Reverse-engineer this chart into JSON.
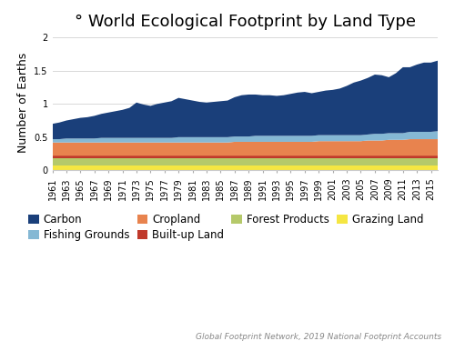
{
  "title": "° World Ecological Footprint by Land Type",
  "ylabel": "Number of Earths",
  "xlabel": "",
  "caption": "Global Footprint Network, 2019 National Footprint Accounts",
  "years": [
    1961,
    1962,
    1963,
    1964,
    1965,
    1966,
    1967,
    1968,
    1969,
    1970,
    1971,
    1972,
    1973,
    1974,
    1975,
    1976,
    1977,
    1978,
    1979,
    1980,
    1981,
    1982,
    1983,
    1984,
    1985,
    1986,
    1987,
    1988,
    1989,
    1990,
    1991,
    1992,
    1993,
    1994,
    1995,
    1996,
    1997,
    1998,
    1999,
    2000,
    2001,
    2002,
    2003,
    2004,
    2005,
    2006,
    2007,
    2008,
    2009,
    2010,
    2011,
    2012,
    2013,
    2014,
    2015,
    2016
  ],
  "grazing_land": [
    0.07,
    0.07,
    0.07,
    0.07,
    0.07,
    0.07,
    0.07,
    0.07,
    0.07,
    0.07,
    0.07,
    0.07,
    0.07,
    0.07,
    0.07,
    0.07,
    0.07,
    0.07,
    0.07,
    0.07,
    0.07,
    0.07,
    0.07,
    0.07,
    0.07,
    0.07,
    0.07,
    0.07,
    0.07,
    0.07,
    0.07,
    0.07,
    0.07,
    0.07,
    0.07,
    0.07,
    0.07,
    0.07,
    0.07,
    0.07,
    0.07,
    0.07,
    0.07,
    0.07,
    0.07,
    0.07,
    0.07,
    0.07,
    0.07,
    0.07,
    0.07,
    0.07,
    0.07,
    0.07,
    0.07,
    0.07
  ],
  "forest_products": [
    0.12,
    0.12,
    0.12,
    0.12,
    0.12,
    0.12,
    0.12,
    0.12,
    0.12,
    0.12,
    0.12,
    0.12,
    0.12,
    0.12,
    0.12,
    0.12,
    0.12,
    0.12,
    0.12,
    0.12,
    0.12,
    0.12,
    0.12,
    0.12,
    0.12,
    0.12,
    0.12,
    0.12,
    0.12,
    0.12,
    0.12,
    0.12,
    0.12,
    0.12,
    0.12,
    0.12,
    0.12,
    0.12,
    0.12,
    0.12,
    0.12,
    0.12,
    0.12,
    0.12,
    0.12,
    0.12,
    0.12,
    0.12,
    0.12,
    0.12,
    0.12,
    0.12,
    0.12,
    0.12,
    0.12,
    0.12
  ],
  "built_up_land": [
    0.03,
    0.03,
    0.03,
    0.03,
    0.03,
    0.03,
    0.03,
    0.03,
    0.03,
    0.03,
    0.03,
    0.03,
    0.03,
    0.03,
    0.03,
    0.03,
    0.03,
    0.03,
    0.03,
    0.03,
    0.03,
    0.03,
    0.03,
    0.03,
    0.03,
    0.03,
    0.03,
    0.03,
    0.03,
    0.03,
    0.03,
    0.03,
    0.03,
    0.03,
    0.03,
    0.03,
    0.03,
    0.03,
    0.03,
    0.03,
    0.03,
    0.03,
    0.03,
    0.03,
    0.03,
    0.03,
    0.03,
    0.03,
    0.03,
    0.03,
    0.03,
    0.03,
    0.03,
    0.03,
    0.03,
    0.03
  ],
  "cropland": [
    0.2,
    0.2,
    0.2,
    0.2,
    0.2,
    0.2,
    0.2,
    0.2,
    0.2,
    0.2,
    0.2,
    0.2,
    0.2,
    0.2,
    0.2,
    0.2,
    0.2,
    0.2,
    0.2,
    0.2,
    0.2,
    0.2,
    0.2,
    0.2,
    0.2,
    0.2,
    0.21,
    0.21,
    0.21,
    0.21,
    0.21,
    0.21,
    0.21,
    0.21,
    0.21,
    0.21,
    0.21,
    0.21,
    0.22,
    0.22,
    0.22,
    0.22,
    0.22,
    0.22,
    0.22,
    0.23,
    0.23,
    0.23,
    0.24,
    0.24,
    0.24,
    0.25,
    0.25,
    0.25,
    0.25,
    0.25
  ],
  "fishing_grounds": [
    0.05,
    0.05,
    0.06,
    0.06,
    0.06,
    0.06,
    0.06,
    0.07,
    0.07,
    0.07,
    0.07,
    0.07,
    0.07,
    0.07,
    0.07,
    0.07,
    0.07,
    0.07,
    0.08,
    0.08,
    0.08,
    0.08,
    0.08,
    0.08,
    0.08,
    0.08,
    0.08,
    0.08,
    0.08,
    0.09,
    0.09,
    0.09,
    0.09,
    0.09,
    0.09,
    0.09,
    0.09,
    0.09,
    0.09,
    0.09,
    0.09,
    0.09,
    0.09,
    0.09,
    0.09,
    0.09,
    0.1,
    0.1,
    0.1,
    0.1,
    0.1,
    0.11,
    0.11,
    0.11,
    0.11,
    0.12
  ],
  "carbon": [
    0.23,
    0.25,
    0.27,
    0.29,
    0.31,
    0.32,
    0.34,
    0.36,
    0.38,
    0.4,
    0.42,
    0.45,
    0.53,
    0.5,
    0.48,
    0.51,
    0.53,
    0.55,
    0.59,
    0.57,
    0.55,
    0.53,
    0.52,
    0.53,
    0.54,
    0.55,
    0.59,
    0.62,
    0.63,
    0.62,
    0.61,
    0.61,
    0.6,
    0.61,
    0.63,
    0.65,
    0.66,
    0.64,
    0.65,
    0.67,
    0.68,
    0.7,
    0.74,
    0.79,
    0.82,
    0.85,
    0.89,
    0.88,
    0.84,
    0.9,
    0.99,
    0.97,
    1.01,
    1.04,
    1.04,
    1.06
  ],
  "colors": {
    "grazing_land": "#f5e642",
    "forest_products": "#b5c96a",
    "built_up_land": "#c0392b",
    "cropland": "#e8834e",
    "fishing_grounds": "#85b8d4",
    "carbon": "#1a3f7a"
  },
  "ylim": [
    0,
    2.05
  ],
  "yticks": [
    0,
    0.5,
    1,
    1.5,
    2
  ],
  "background_color": "#ffffff",
  "grid_color": "#d8d8d8",
  "title_fontsize": 13,
  "label_fontsize": 9,
  "tick_fontsize": 7,
  "caption_fontsize": 6.5
}
